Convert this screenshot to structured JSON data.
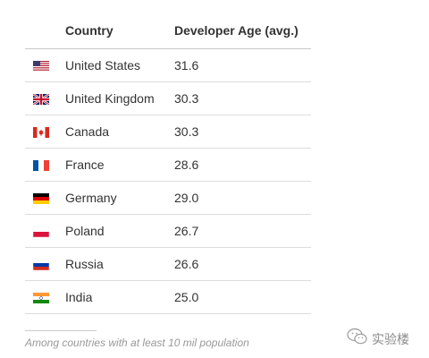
{
  "chart_data": {
    "type": "table",
    "columns": [
      "Country",
      "Developer Age (avg.)"
    ],
    "rows": [
      {
        "flag": "us-flag-icon",
        "country": "United States",
        "age": "31.6"
      },
      {
        "flag": "uk-flag-icon",
        "country": "United Kingdom",
        "age": "30.3"
      },
      {
        "flag": "canada-flag-icon",
        "country": "Canada",
        "age": "30.3"
      },
      {
        "flag": "france-flag-icon",
        "country": "France",
        "age": "28.6"
      },
      {
        "flag": "germany-flag-icon",
        "country": "Germany",
        "age": "29.0"
      },
      {
        "flag": "poland-flag-icon",
        "country": "Poland",
        "age": "26.7"
      },
      {
        "flag": "russia-flag-icon",
        "country": "Russia",
        "age": "26.6"
      },
      {
        "flag": "india-flag-icon",
        "country": "India",
        "age": "25.0"
      }
    ],
    "footnote": "Among countries with at least 10 mil population"
  },
  "watermark": {
    "text": "实验楼",
    "icon": "wechat-icon"
  },
  "colors": {
    "text": "#333333",
    "footnote": "#999999",
    "rule": "#dddddd"
  }
}
